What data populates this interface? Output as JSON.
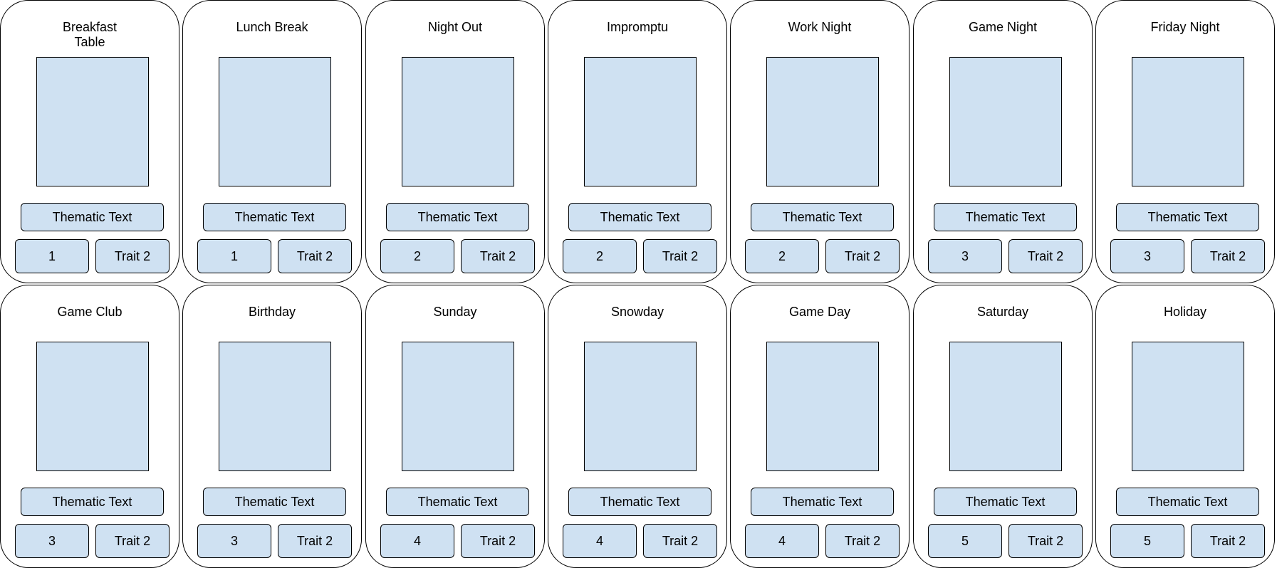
{
  "colors": {
    "fill": "#cfe1f2",
    "stroke": "#000000",
    "background": "#ffffff"
  },
  "cards": [
    {
      "title": "Breakfast\nTable",
      "thematic": "Thematic Text",
      "trait1": "1",
      "trait2": "Trait 2"
    },
    {
      "title": "Lunch Break",
      "thematic": "Thematic Text",
      "trait1": "1",
      "trait2": "Trait 2"
    },
    {
      "title": "Night Out",
      "thematic": "Thematic Text",
      "trait1": "2",
      "trait2": "Trait 2"
    },
    {
      "title": "Impromptu",
      "thematic": "Thematic Text",
      "trait1": "2",
      "trait2": "Trait 2"
    },
    {
      "title": "Work Night",
      "thematic": "Thematic Text",
      "trait1": "2",
      "trait2": "Trait 2"
    },
    {
      "title": "Game Night",
      "thematic": "Thematic Text",
      "trait1": "3",
      "trait2": "Trait 2"
    },
    {
      "title": "Friday Night",
      "thematic": "Thematic Text",
      "trait1": "3",
      "trait2": "Trait 2"
    },
    {
      "title": "Game Club",
      "thematic": "Thematic Text",
      "trait1": "3",
      "trait2": "Trait 2"
    },
    {
      "title": "Birthday",
      "thematic": "Thematic Text",
      "trait1": "3",
      "trait2": "Trait 2"
    },
    {
      "title": "Sunday",
      "thematic": "Thematic Text",
      "trait1": "4",
      "trait2": "Trait 2"
    },
    {
      "title": "Snowday",
      "thematic": "Thematic Text",
      "trait1": "4",
      "trait2": "Trait 2"
    },
    {
      "title": "Game Day",
      "thematic": "Thematic Text",
      "trait1": "4",
      "trait2": "Trait 2"
    },
    {
      "title": "Saturday",
      "thematic": "Thematic Text",
      "trait1": "5",
      "trait2": "Trait 2"
    },
    {
      "title": "Holiday",
      "thematic": "Thematic Text",
      "trait1": "5",
      "trait2": "Trait 2"
    }
  ]
}
